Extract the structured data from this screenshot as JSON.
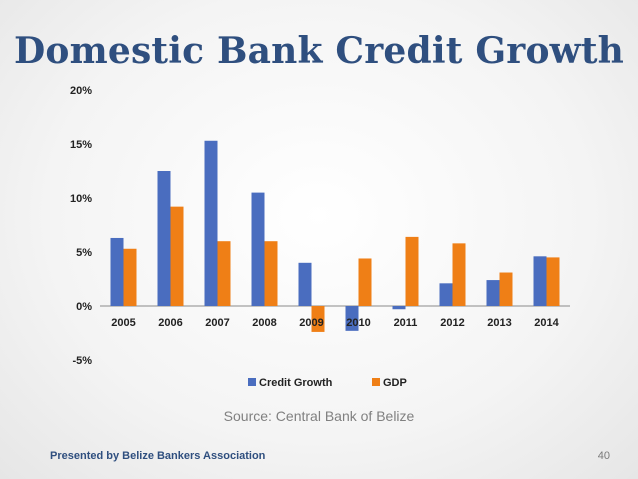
{
  "slide": {
    "title": "Domestic Bank Credit Growth",
    "source": "Source: Central Bank of Belize",
    "footer": "Presented by Belize Bankers Association",
    "page_number": "40"
  },
  "colors": {
    "credit": "#4a6dbf",
    "gdp": "#ef7f16",
    "title": "#2f4f7f"
  },
  "chart_data": {
    "type": "bar",
    "title": "",
    "categories": [
      "2005",
      "2006",
      "2007",
      "2008",
      "2009",
      "2010",
      "2011",
      "2012",
      "2013",
      "2014"
    ],
    "series": [
      {
        "name": "Credit Growth",
        "values": [
          6.3,
          12.5,
          15.3,
          10.5,
          4.0,
          -2.3,
          -0.3,
          2.1,
          2.4,
          4.6
        ]
      },
      {
        "name": "GDP",
        "values": [
          5.3,
          9.2,
          6.0,
          6.0,
          -2.4,
          4.4,
          6.4,
          5.8,
          3.1,
          4.5
        ]
      }
    ],
    "yticks": [
      "-5%",
      "0%",
      "5%",
      "10%",
      "15%",
      "20%"
    ],
    "ylim": [
      -5,
      20
    ],
    "xlabel": "",
    "ylabel": "",
    "legend": "bottom"
  }
}
